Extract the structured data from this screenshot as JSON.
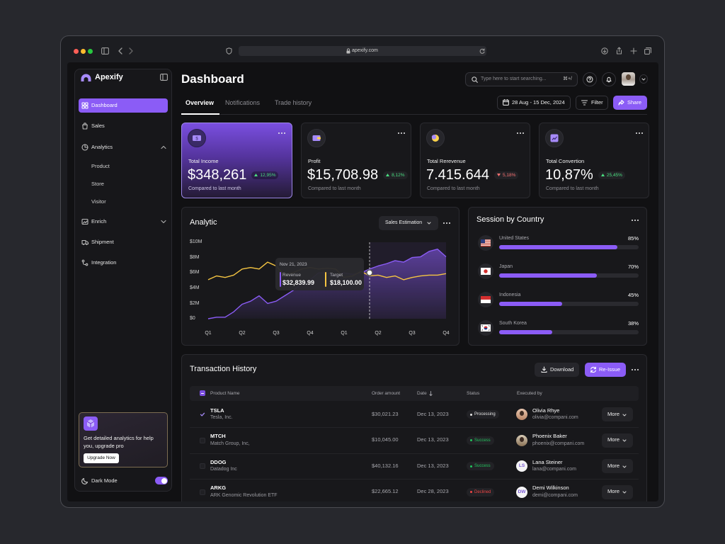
{
  "browser": {
    "url": "apexify.com"
  },
  "sidebar": {
    "brand": "Apexify",
    "nav": [
      "Dashboard",
      "Sales",
      "Analytics",
      "Product",
      "Store",
      "Visitor",
      "Enrich",
      "Shipment",
      "Integration"
    ],
    "upgrade": {
      "text": "Get detailed analytics for help you, upgrade pro",
      "button": "Upgrade Now"
    },
    "dark_mode": "Dark Mode"
  },
  "header": {
    "title": "Dashboard",
    "search_placeholder": "Type here to start searching...",
    "shortcut": "⌘+/",
    "tabs": [
      "Overview",
      "Notifications",
      "Trade history"
    ],
    "date_range": "28 Aug - 15 Dec, 2024",
    "filter": "Filter",
    "share": "Share"
  },
  "stats": [
    {
      "label": "Total Income",
      "value": "$348,261",
      "change": "12,95%",
      "change_color": "#4ade80",
      "note": "Compared to last month"
    },
    {
      "label": "Profit",
      "value": "$15,708.98",
      "change": "8,12%",
      "change_color": "#4ade80",
      "note": "Compared to last month"
    },
    {
      "label": "Total Rerevenue",
      "value": "7.415.644",
      "change": "5,18%",
      "change_color": "#f87171",
      "note": "Compared to last month"
    },
    {
      "label": "Total Convertion",
      "value": "10,87%",
      "change": "25,45%",
      "change_color": "#4ade80",
      "note": "Compared to last month"
    }
  ],
  "analytic": {
    "title": "Analytic",
    "dropdown": "Sales Estimation",
    "chart": {
      "type": "line",
      "categories": [
        "Q1",
        null,
        null,
        null,
        "Q2",
        null,
        null,
        null,
        "Q3",
        null,
        null,
        null,
        "Q4",
        null,
        null,
        null,
        "Q1",
        null,
        null,
        null,
        "Q2",
        null,
        null,
        null,
        "Q3",
        null,
        null,
        null,
        "Q4"
      ],
      "series": [
        {
          "name": "Revenue",
          "color": "#8b5cf6",
          "values": [
            0,
            0.2,
            0.2,
            0.9,
            1.9,
            2.3,
            3.0,
            2.0,
            2.3,
            3.0,
            3.7,
            4.6,
            5.1,
            6.0,
            6.0,
            5.6,
            6.0,
            5.8,
            6.0,
            6.5,
            6.9,
            7.2,
            7.6,
            7.4,
            8.0,
            8.1,
            8.8,
            9.1,
            8.1
          ]
        },
        {
          "name": "Target",
          "color": "#f5c542",
          "values": [
            5.1,
            5.6,
            5.4,
            5.7,
            6.5,
            6.7,
            6.5,
            7.4,
            6.9,
            5.7,
            6.0,
            6.5,
            6.7,
            6.5,
            6.6,
            6.5,
            5.4,
            5.6,
            6.2,
            5.6,
            5.7,
            5.4,
            5.6,
            5.1,
            5.4,
            5.6,
            5.7,
            5.7,
            5.9
          ]
        }
      ],
      "ylim": [
        0,
        10
      ],
      "yticks": [
        {
          "value": 0,
          "label": "$0"
        },
        {
          "value": 2,
          "label": "$2M"
        },
        {
          "value": 4,
          "label": "$4M"
        },
        {
          "value": 6,
          "label": "$6M"
        },
        {
          "value": 8,
          "label": "$8M"
        },
        {
          "value": 10,
          "label": "$10M"
        }
      ],
      "grid": false,
      "tooltip": {
        "x": "Nov 21, 2023",
        "values": [
          "$32,839.99",
          "$18,100.00"
        ]
      }
    }
  },
  "sessions": {
    "title": "Session by Country",
    "chart": {
      "type": "bar",
      "categories": [
        "United States",
        "Japan",
        "Indonesia",
        "South Korea"
      ],
      "values": [
        85,
        70,
        45,
        38
      ],
      "value_labels": [
        "85%",
        "70%",
        "45%",
        "38%"
      ],
      "xlim": [
        0,
        100
      ],
      "color": "#8b5cf6"
    }
  },
  "transactions": {
    "title": "Transaction History",
    "download": "Download",
    "reissue": "Re-Issue",
    "columns": [
      "Product Name",
      "Order amount",
      "Date",
      "Status",
      "Executed by"
    ],
    "rows": [
      {
        "ticker": "TSLA",
        "company": "Tesla, Inc.",
        "amount": "$30,021.23",
        "date": "Dec 13, 2023",
        "status": "Processing",
        "status_color": "#e5e5e5",
        "name": "Olivia Rhye",
        "email": "olivia@compani.com",
        "action": "More"
      },
      {
        "ticker": "MTCH",
        "company": "Match Group, Inc,",
        "amount": "$10,045.00",
        "date": "Dec 13, 2023",
        "status": "Success",
        "status_color": "#22c55e",
        "name": "Phoenix Baker",
        "email": "phoenix@compani.com",
        "action": "More"
      },
      {
        "ticker": "DDOG",
        "company": "Datadog Inc",
        "amount": "$40,132.16",
        "date": "Dec 13, 2023",
        "status": "Success",
        "status_color": "#22c55e",
        "name": "Lana Steiner",
        "email": "lana@compani.com",
        "initials": "LS",
        "action": "More"
      },
      {
        "ticker": "ARKG",
        "company": "ARK Genomic Revolution ETF",
        "amount": "$22,665.12",
        "date": "Dec 28, 2023",
        "status": "Declined",
        "status_color": "#ef4444",
        "name": "Demi Wilkinson",
        "email": "demi@compani.com",
        "initials": "DW",
        "action": "More"
      }
    ]
  }
}
